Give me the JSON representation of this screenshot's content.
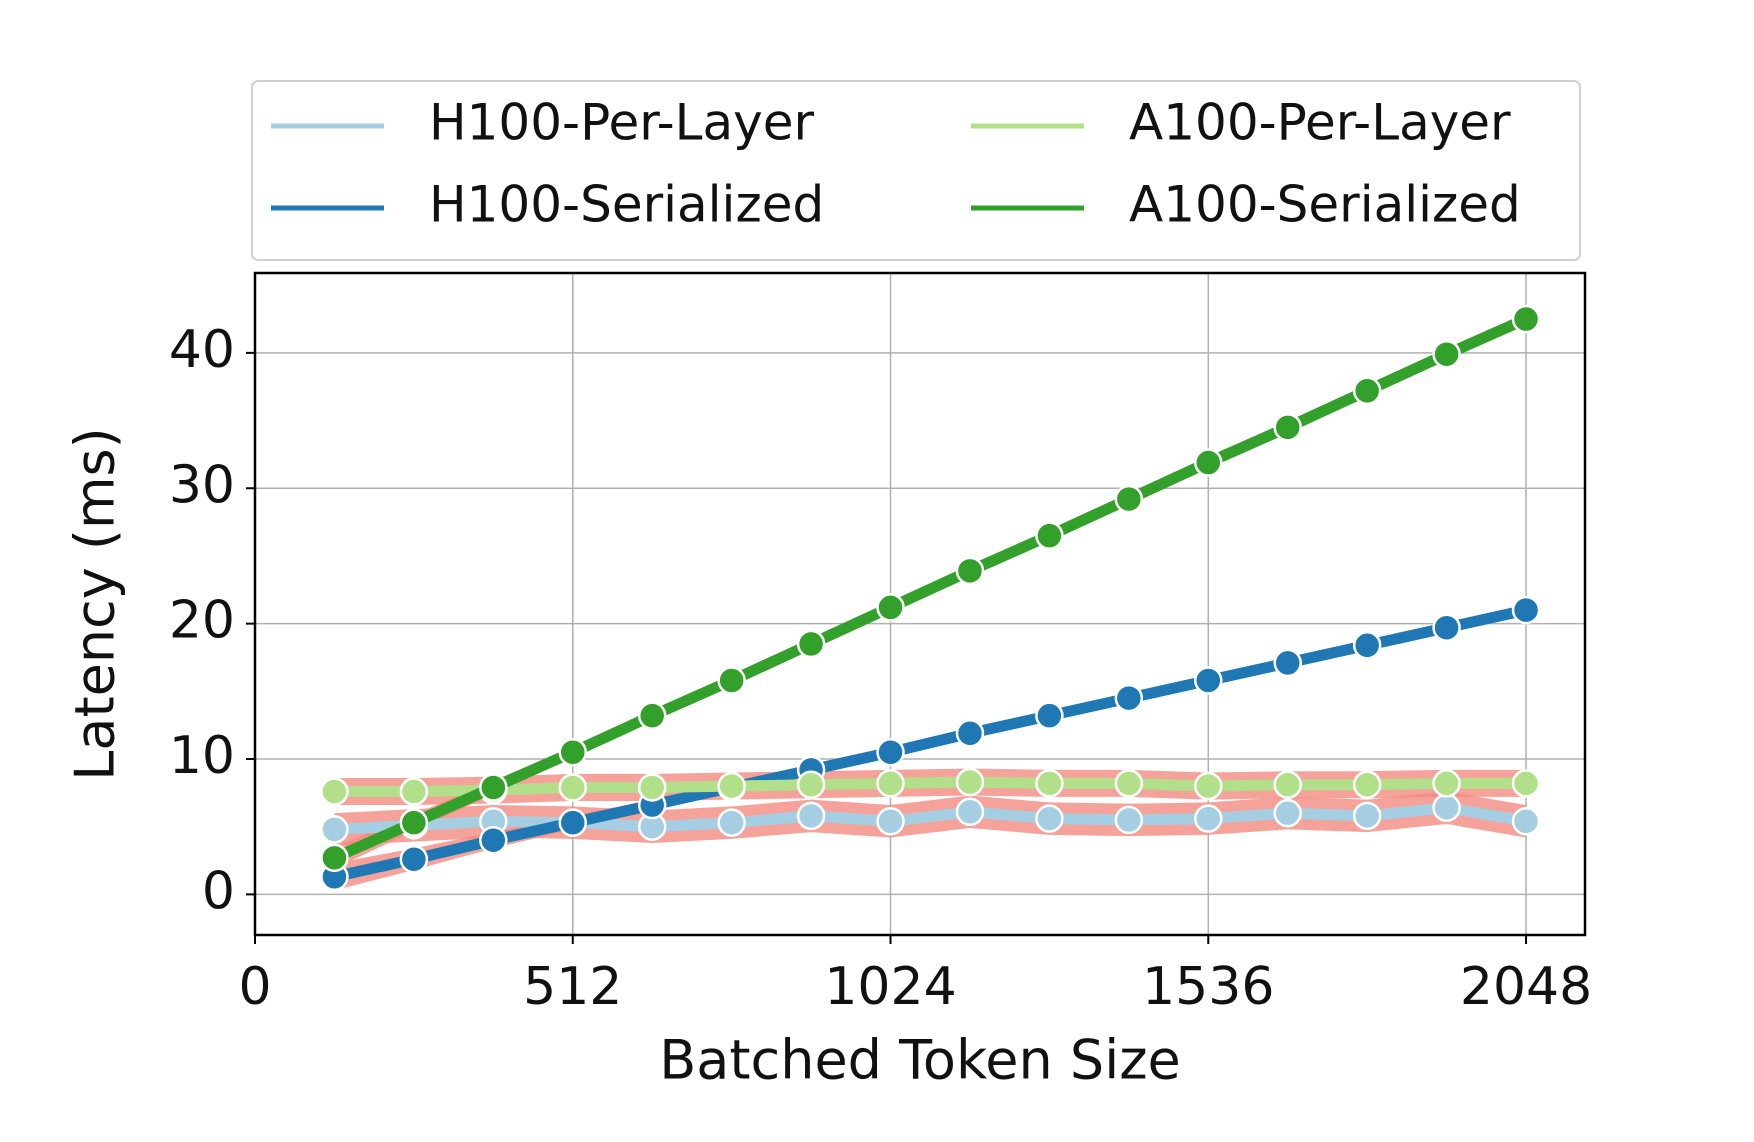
{
  "chart_data": {
    "type": "line",
    "x_label": "Batched Token Size",
    "y_label": "Latency (ms)",
    "x": [
      128,
      256,
      384,
      512,
      640,
      768,
      896,
      1024,
      1152,
      1280,
      1408,
      1536,
      1664,
      1792,
      1920,
      2048
    ],
    "series": [
      {
        "name": "H100-Per-Layer",
        "color": "#a6cee3",
        "values": [
          4.8,
          5.1,
          5.4,
          5.3,
          5.0,
          5.3,
          5.8,
          5.4,
          6.1,
          5.6,
          5.5,
          5.6,
          6.0,
          5.8,
          6.4,
          5.4
        ],
        "error": [
          1.2,
          1.2,
          1.2,
          1.2,
          1.2,
          1.2,
          1.2,
          1.2,
          1.2,
          1.2,
          1.2,
          1.2,
          1.2,
          1.2,
          1.2,
          1.2
        ]
      },
      {
        "name": "H100-Serialized",
        "color": "#1f78b4",
        "values": [
          1.3,
          2.6,
          4.0,
          5.3,
          6.6,
          7.9,
          9.2,
          10.5,
          11.9,
          13.2,
          14.5,
          15.8,
          17.1,
          18.4,
          19.7,
          21.0
        ],
        "error": [
          1.0,
          0.8,
          0.6,
          0.5,
          0.4,
          0.4,
          0.4,
          0.4,
          0.4,
          0.4,
          0.4,
          0.4,
          0.4,
          0.4,
          0.4,
          0.4
        ]
      },
      {
        "name": "A100-Per-Layer",
        "color": "#b2df8a",
        "values": [
          7.6,
          7.6,
          7.7,
          7.9,
          7.9,
          8.0,
          8.1,
          8.2,
          8.3,
          8.2,
          8.2,
          8.0,
          8.1,
          8.1,
          8.2,
          8.2
        ],
        "error": [
          1.0,
          1.0,
          1.0,
          1.0,
          1.0,
          1.0,
          1.0,
          1.0,
          1.0,
          1.0,
          1.0,
          1.0,
          1.0,
          1.0,
          1.0,
          1.0
        ]
      },
      {
        "name": "A100-Serialized",
        "color": "#33a02c",
        "values": [
          2.7,
          5.3,
          7.9,
          10.5,
          13.2,
          15.8,
          18.5,
          21.2,
          23.9,
          26.5,
          29.2,
          31.9,
          34.5,
          37.2,
          39.9,
          42.5
        ],
        "error": [
          0.8,
          0.6,
          0.5,
          0.4,
          0.4,
          0.4,
          0.4,
          0.4,
          0.4,
          0.4,
          0.4,
          0.4,
          0.4,
          0.4,
          0.4,
          0.4
        ]
      }
    ],
    "band_color": "#f28b82",
    "xlim": [
      0,
      2143
    ],
    "ylim": [
      -3,
      45.9
    ],
    "xticks": [
      0,
      512,
      1024,
      1536,
      2048
    ],
    "yticks": [
      0,
      10,
      20,
      30,
      40
    ],
    "grid": true,
    "legend": "top"
  }
}
